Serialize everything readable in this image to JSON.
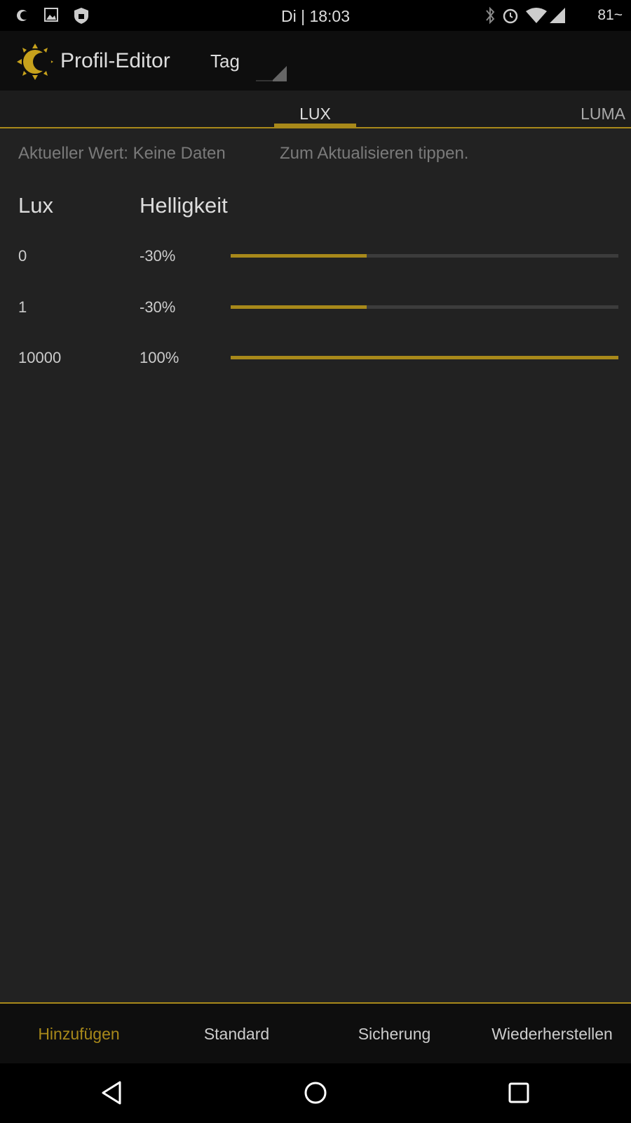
{
  "status_bar": {
    "time": "Di | 18:03",
    "battery": "81~",
    "icons": [
      "brightness-icon",
      "image-icon",
      "shield-lock-icon",
      "bluetooth-icon",
      "alarm-icon",
      "wifi-icon",
      "signal-icon"
    ]
  },
  "app_bar": {
    "title": "Profil-Editor",
    "profile_select": "Tag",
    "logo_icon": "sun-moon-logo"
  },
  "tabs": [
    {
      "label": "LUX",
      "active": true
    },
    {
      "label": "LUMA",
      "active": false
    }
  ],
  "info": {
    "current_value": "Aktueller Wert: Keine Daten",
    "tap_hint": "Zum Aktualisieren tippen."
  },
  "table": {
    "headers": {
      "lux": "Lux",
      "brightness": "Helligkeit"
    },
    "rows": [
      {
        "lux": "0",
        "brightness": "-30%",
        "slider_value": -30
      },
      {
        "lux": "1",
        "brightness": "-30%",
        "slider_value": -30
      },
      {
        "lux": "10000",
        "brightness": "100%",
        "slider_value": 100
      }
    ],
    "slider_range": [
      -100,
      100
    ]
  },
  "bottom_bar": [
    {
      "label": "Hinzufügen",
      "highlighted": true
    },
    {
      "label": "Standard"
    },
    {
      "label": "Sicherung"
    },
    {
      "label": "Wiederherstellen"
    }
  ],
  "colors": {
    "accent": "#a8891a",
    "background": "#222222"
  }
}
